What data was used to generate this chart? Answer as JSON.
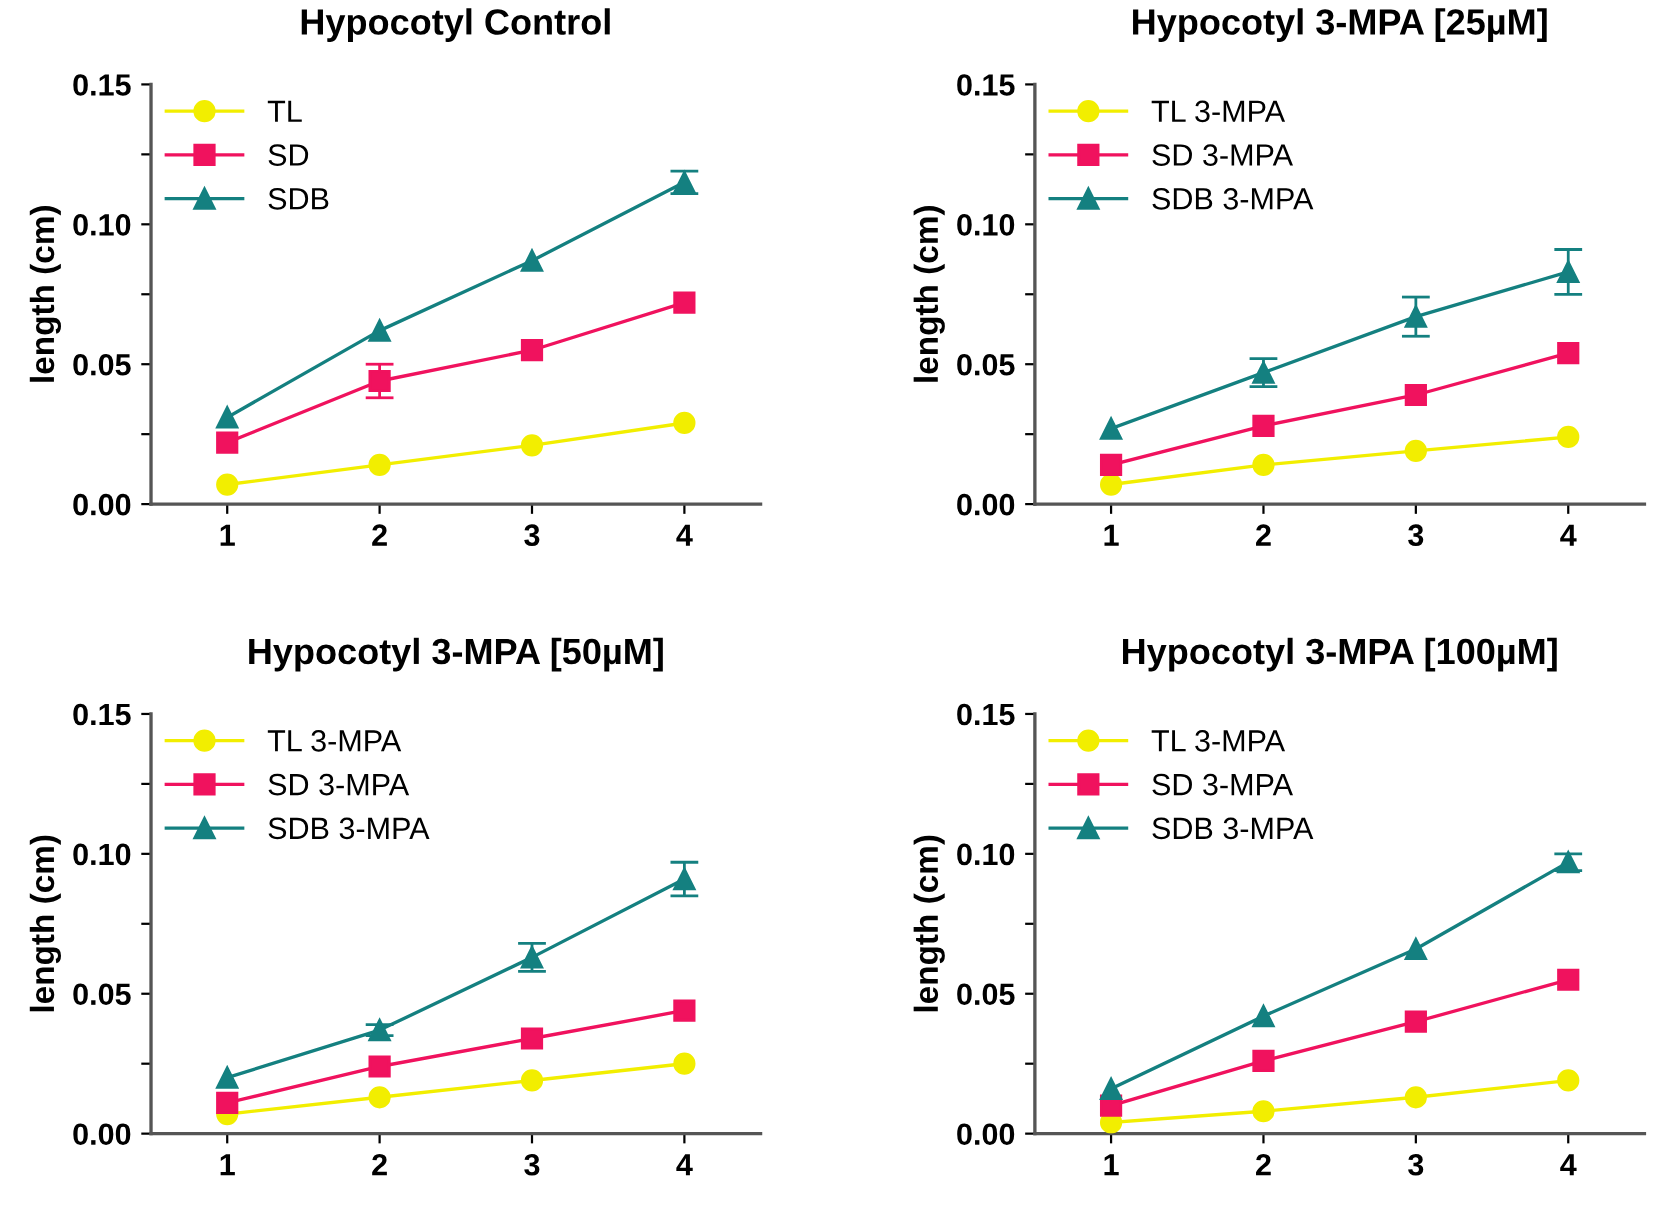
{
  "chart_data": [
    {
      "type": "line",
      "title": "Hypocotyl Control",
      "ylabel": "length (cm)",
      "x": [
        1,
        2,
        3,
        4
      ],
      "xlim": [
        0.5,
        4.5
      ],
      "xticks": [
        1,
        2,
        3,
        4
      ],
      "ylim": [
        0,
        0.15
      ],
      "yticks": [
        {
          "value": 0,
          "label": "0.00"
        },
        {
          "value": 0.025,
          "label": null
        },
        {
          "value": 0.05,
          "label": "0.05"
        },
        {
          "value": 0.075,
          "label": null
        },
        {
          "value": 0.1,
          "label": "0.10"
        },
        {
          "value": 0.125,
          "label": null
        },
        {
          "value": 0.15,
          "label": "0.15"
        }
      ],
      "legend": "top left",
      "grid": false,
      "line_style": "solid",
      "series": [
        {
          "name": "TL",
          "color": "#f2ee00",
          "marker": "circle",
          "values": [
            0.007,
            0.014,
            0.021,
            0.029
          ]
        },
        {
          "name": "SD",
          "color": "#f0125e",
          "marker": "square",
          "values": [
            0.022,
            0.044,
            0.055,
            0.072
          ],
          "errors": [
            null,
            0.006,
            null,
            null
          ]
        },
        {
          "name": "SDB",
          "color": "#148080",
          "marker": "triangle",
          "values": [
            0.031,
            0.062,
            0.087,
            0.115
          ],
          "errors": [
            null,
            null,
            null,
            0.004
          ]
        }
      ]
    },
    {
      "type": "line",
      "title": "Hypocotyl 3-MPA [25µM]",
      "ylabel": "length (cm)",
      "x": [
        1,
        2,
        3,
        4
      ],
      "xlim": [
        0.5,
        4.5
      ],
      "xticks": [
        1,
        2,
        3,
        4
      ],
      "ylim": [
        0,
        0.15
      ],
      "yticks": [
        {
          "value": 0,
          "label": "0.00"
        },
        {
          "value": 0.025,
          "label": null
        },
        {
          "value": 0.05,
          "label": "0.05"
        },
        {
          "value": 0.075,
          "label": null
        },
        {
          "value": 0.1,
          "label": "0.10"
        },
        {
          "value": 0.125,
          "label": null
        },
        {
          "value": 0.15,
          "label": "0.15"
        }
      ],
      "legend": "top left",
      "grid": false,
      "line_style": "solid",
      "series": [
        {
          "name": "TL 3-MPA",
          "color": "#f2ee00",
          "marker": "circle",
          "values": [
            0.007,
            0.014,
            0.019,
            0.024
          ]
        },
        {
          "name": "SD 3-MPA",
          "color": "#f0125e",
          "marker": "square",
          "values": [
            0.014,
            0.028,
            0.039,
            0.054
          ]
        },
        {
          "name": "SDB 3-MPA",
          "color": "#148080",
          "marker": "triangle",
          "values": [
            0.027,
            0.047,
            0.067,
            0.083
          ],
          "errors": [
            null,
            0.005,
            0.007,
            0.008
          ]
        }
      ]
    },
    {
      "type": "line",
      "title": "Hypocotyl 3-MPA [50µM]",
      "ylabel": "length (cm)",
      "x": [
        1,
        2,
        3,
        4
      ],
      "xlim": [
        0.5,
        4.5
      ],
      "xticks": [
        1,
        2,
        3,
        4
      ],
      "ylim": [
        0,
        0.15
      ],
      "yticks": [
        {
          "value": 0,
          "label": "0.00"
        },
        {
          "value": 0.025,
          "label": null
        },
        {
          "value": 0.05,
          "label": "0.05"
        },
        {
          "value": 0.075,
          "label": null
        },
        {
          "value": 0.1,
          "label": "0.10"
        },
        {
          "value": 0.125,
          "label": null
        },
        {
          "value": 0.15,
          "label": "0.15"
        }
      ],
      "legend": "top left",
      "grid": false,
      "line_style": "solid",
      "series": [
        {
          "name": "TL 3-MPA",
          "color": "#f2ee00",
          "marker": "circle",
          "values": [
            0.007,
            0.013,
            0.019,
            0.025
          ]
        },
        {
          "name": "SD 3-MPA",
          "color": "#f0125e",
          "marker": "square",
          "values": [
            0.011,
            0.024,
            0.034,
            0.044
          ]
        },
        {
          "name": "SDB 3-MPA",
          "color": "#148080",
          "marker": "triangle",
          "values": [
            0.02,
            0.037,
            0.063,
            0.091
          ],
          "errors": [
            null,
            0.002,
            0.005,
            0.006
          ]
        }
      ]
    },
    {
      "type": "line",
      "title": "Hypocotyl 3-MPA [100µM]",
      "ylabel": "length (cm)",
      "x": [
        1,
        2,
        3,
        4
      ],
      "xlim": [
        0.5,
        4.5
      ],
      "xticks": [
        1,
        2,
        3,
        4
      ],
      "ylim": [
        0,
        0.15
      ],
      "yticks": [
        {
          "value": 0,
          "label": "0.00"
        },
        {
          "value": 0.025,
          "label": null
        },
        {
          "value": 0.05,
          "label": "0.05"
        },
        {
          "value": 0.075,
          "label": null
        },
        {
          "value": 0.1,
          "label": "0.10"
        },
        {
          "value": 0.125,
          "label": null
        },
        {
          "value": 0.15,
          "label": "0.15"
        }
      ],
      "legend": "top left",
      "grid": false,
      "line_style": "solid",
      "series": [
        {
          "name": "TL 3-MPA",
          "color": "#f2ee00",
          "marker": "circle",
          "values": [
            0.004,
            0.008,
            0.013,
            0.019
          ]
        },
        {
          "name": "SD 3-MPA",
          "color": "#f0125e",
          "marker": "square",
          "values": [
            0.01,
            0.026,
            0.04,
            0.055
          ]
        },
        {
          "name": "SDB 3-MPA",
          "color": "#148080",
          "marker": "triangle",
          "values": [
            0.016,
            0.042,
            0.066,
            0.097
          ],
          "errors": [
            null,
            null,
            null,
            0.003
          ]
        }
      ]
    }
  ]
}
